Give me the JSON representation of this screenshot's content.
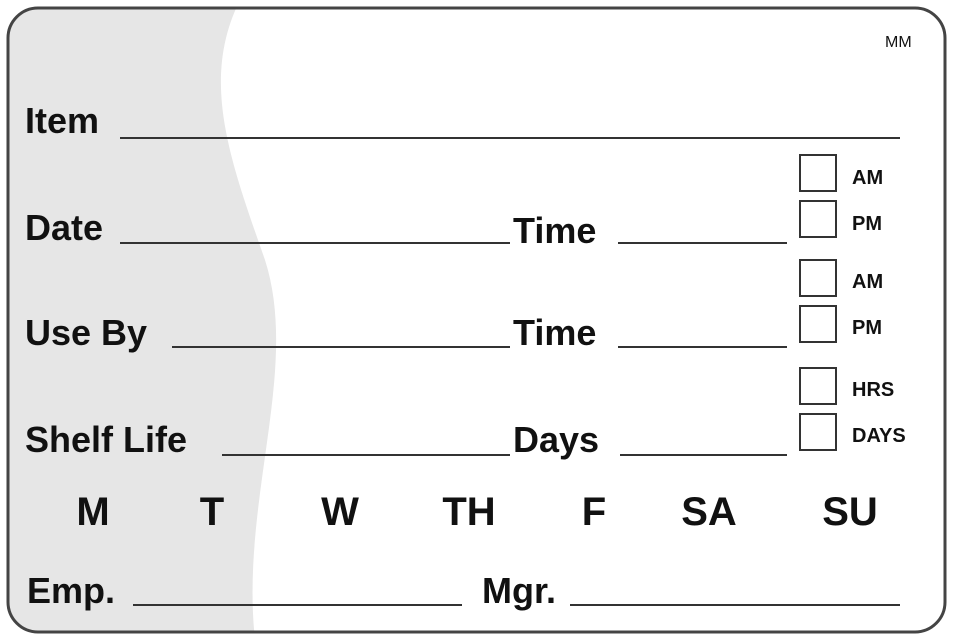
{
  "code": "MM",
  "fields": {
    "item": "Item",
    "date": "Date",
    "date_time": "Time",
    "use_by": "Use By",
    "use_by_time": "Time",
    "shelf_life": "Shelf Life",
    "shelf_life_days": "Days",
    "emp": "Emp.",
    "mgr": "Mgr."
  },
  "checkboxes": [
    "AM",
    "PM",
    "AM",
    "PM",
    "HRS",
    "DAYS"
  ],
  "weekdays": [
    "M",
    "T",
    "W",
    "TH",
    "F",
    "SA",
    "SU"
  ]
}
